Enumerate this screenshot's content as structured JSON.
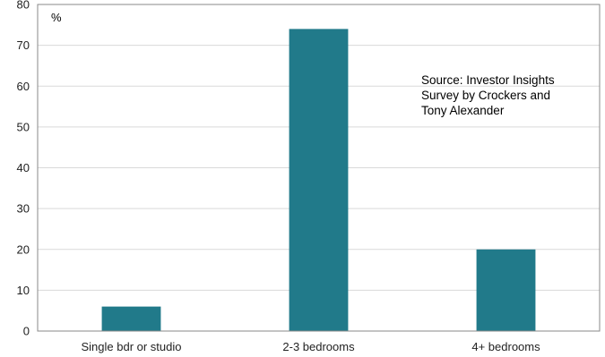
{
  "chart_data": {
    "type": "bar",
    "categories": [
      "Single bdr or studio",
      "2-3 bedrooms",
      "4+ bedrooms"
    ],
    "values": [
      6,
      74,
      20
    ],
    "ylim": [
      0,
      80
    ],
    "yticks": [
      0,
      10,
      20,
      30,
      40,
      50,
      60,
      70,
      80
    ],
    "unit_label": "%",
    "annotation": [
      "Source: Investor Insights",
      "Survey by Crockers and",
      "Tony Alexander"
    ],
    "bar_color": "#217a8a",
    "grid": true
  }
}
